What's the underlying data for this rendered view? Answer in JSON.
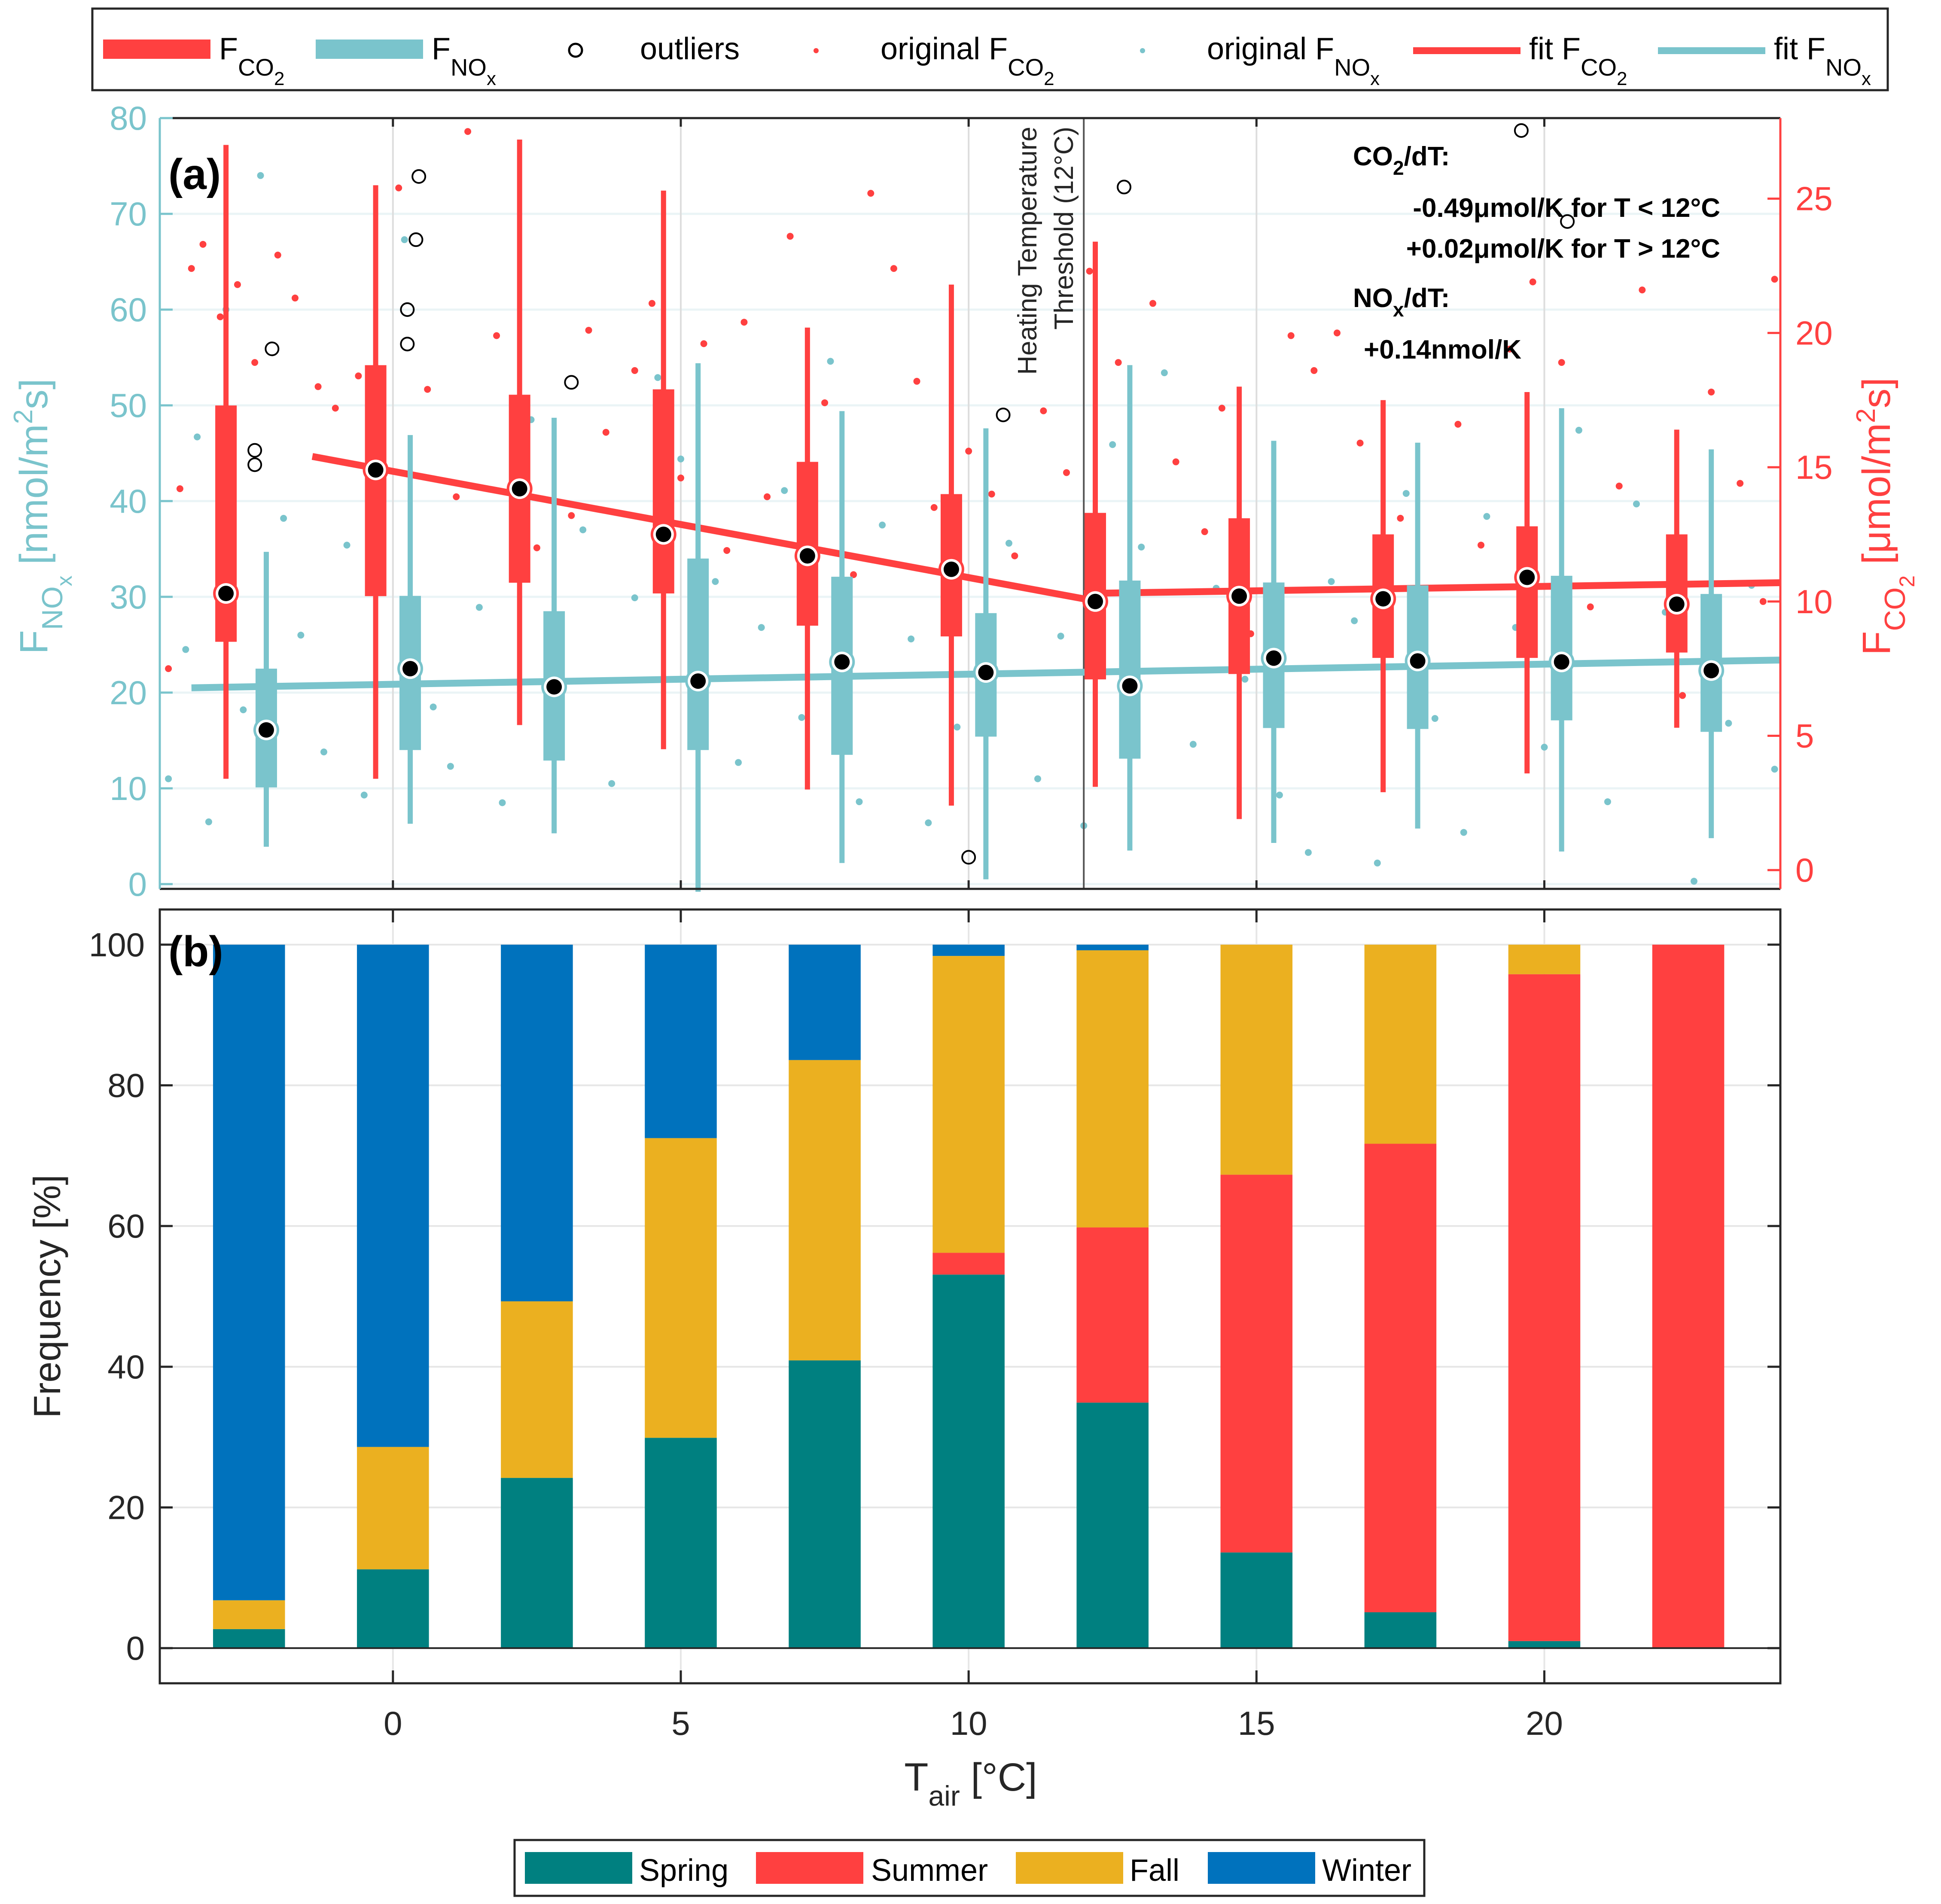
{
  "colors": {
    "co2": "#FF4040",
    "nox": "#7AC4CC",
    "spring": "#008080",
    "summer": "#FF4040",
    "fall": "#EBB020",
    "winter": "#0072BD",
    "axis": "#262626",
    "grid": "#E6E6E6"
  },
  "top_legend": {
    "items": [
      {
        "key": "box_co2",
        "label": "F",
        "sub": "CO",
        "subsub": "2"
      },
      {
        "key": "box_nox",
        "label": "F",
        "sub": "NO",
        "subsub": "x"
      },
      {
        "key": "outliers",
        "label": "outliers"
      },
      {
        "key": "orig_co2",
        "label": "original F",
        "sub": "CO",
        "subsub": "2"
      },
      {
        "key": "orig_nox",
        "label": "original F",
        "sub": "NO",
        "subsub": "x"
      },
      {
        "key": "fit_co2",
        "label": "fit F",
        "sub": "CO",
        "subsub": "2"
      },
      {
        "key": "fit_nox",
        "label": "fit F",
        "sub": "NO",
        "subsub": "x"
      }
    ]
  },
  "bottom_legend": {
    "items": [
      "Spring",
      "Summer",
      "Fall",
      "Winter"
    ]
  },
  "chart_data": [
    {
      "panel": "(a)",
      "type": "box",
      "xlabel": "T",
      "xlabel_sub": "air",
      "xlabel_unit": " [°C]",
      "xlim": [
        -4.05,
        24.1
      ],
      "xticks": [
        0,
        5,
        10,
        15,
        20
      ],
      "y_left": {
        "label": "F",
        "sub": "NO",
        "subsub": "x",
        "unit": " [nmol/m",
        "unit_sup": "2",
        "unit_end": "s]",
        "lim": [
          -0.5,
          80
        ],
        "ticks": [
          0,
          10,
          20,
          30,
          40,
          50,
          60,
          70,
          80
        ]
      },
      "y_right": {
        "label": "F",
        "sub": "CO",
        "subsub": "2",
        "unit": " [μmol/m",
        "unit_sup": "2",
        "unit_end": "s]",
        "lim": [
          -0.7,
          28.0
        ],
        "ticks": [
          0,
          5,
          10,
          15,
          20,
          25
        ]
      },
      "threshold": {
        "x": 12,
        "label_line1": "Heating Temperature",
        "label_line2": "Threshold (12°C)"
      },
      "annotation": {
        "co2_title": "CO",
        "co2_sub": "2",
        "co2_title_end": "/dT:",
        "co2_line1": "-0.49μmol/K for T < 12°C",
        "co2_line2": "+0.02μmol/K for T > 12°C",
        "nox_title": "NO",
        "nox_sub": "x",
        "nox_title_end": "/dT:",
        "nox_line1": "+0.14nmol/K"
      },
      "co2_boxes": [
        {
          "x": -2.9,
          "whisker_low": 3.4,
          "q1": 8.5,
          "median": 10.3,
          "q3": 17.3,
          "whisker_high": 27.0
        },
        {
          "x": -0.3,
          "whisker_low": 3.4,
          "q1": 10.2,
          "median": 14.9,
          "q3": 18.8,
          "whisker_high": 25.5
        },
        {
          "x": 2.2,
          "whisker_low": 5.4,
          "q1": 10.7,
          "median": 14.2,
          "q3": 17.7,
          "whisker_high": 27.2
        },
        {
          "x": 4.7,
          "whisker_low": 4.5,
          "q1": 10.3,
          "median": 12.5,
          "q3": 17.9,
          "whisker_high": 25.3
        },
        {
          "x": 7.2,
          "whisker_low": 3.0,
          "q1": 9.1,
          "median": 11.7,
          "q3": 15.2,
          "whisker_high": 20.2
        },
        {
          "x": 9.7,
          "whisker_low": 2.4,
          "q1": 8.7,
          "median": 11.2,
          "q3": 14.0,
          "whisker_high": 21.8
        },
        {
          "x": 12.2,
          "whisker_low": 3.1,
          "q1": 7.1,
          "median": 10.0,
          "q3": 13.3,
          "whisker_high": 23.4
        },
        {
          "x": 14.7,
          "whisker_low": 1.9,
          "q1": 7.3,
          "median": 10.2,
          "q3": 13.1,
          "whisker_high": 18.0
        },
        {
          "x": 17.2,
          "whisker_low": 2.9,
          "q1": 7.9,
          "median": 10.1,
          "q3": 12.5,
          "whisker_high": 17.5
        },
        {
          "x": 19.7,
          "whisker_low": 3.6,
          "q1": 7.9,
          "median": 10.9,
          "q3": 12.8,
          "whisker_high": 17.8
        },
        {
          "x": 22.3,
          "whisker_low": 5.3,
          "q1": 8.1,
          "median": 9.9,
          "q3": 12.5,
          "whisker_high": 16.4
        }
      ],
      "nox_boxes": [
        {
          "x": -2.2,
          "whisker_low": 3.9,
          "q1": 10.1,
          "median": 16.1,
          "q3": 22.5,
          "whisker_high": 34.7
        },
        {
          "x": 0.3,
          "whisker_low": 6.3,
          "q1": 14.0,
          "median": 22.5,
          "q3": 30.1,
          "whisker_high": 46.9
        },
        {
          "x": 2.8,
          "whisker_low": 5.3,
          "q1": 12.9,
          "median": 20.6,
          "q3": 28.5,
          "whisker_high": 48.7
        },
        {
          "x": 5.3,
          "whisker_low": -0.8,
          "q1": 14.0,
          "median": 21.2,
          "q3": 34.0,
          "whisker_high": 54.4
        },
        {
          "x": 7.8,
          "whisker_low": 2.2,
          "q1": 13.5,
          "median": 23.2,
          "q3": 32.1,
          "whisker_high": 49.4
        },
        {
          "x": 10.3,
          "whisker_low": 0.5,
          "q1": 15.4,
          "median": 22.1,
          "q3": 28.3,
          "whisker_high": 47.6
        },
        {
          "x": 12.8,
          "whisker_low": 3.5,
          "q1": 13.1,
          "median": 20.7,
          "q3": 31.7,
          "whisker_high": 54.2
        },
        {
          "x": 15.3,
          "whisker_low": 4.3,
          "q1": 16.3,
          "median": 23.6,
          "q3": 31.5,
          "whisker_high": 46.3
        },
        {
          "x": 17.8,
          "whisker_low": 5.8,
          "q1": 16.2,
          "median": 23.3,
          "q3": 31.2,
          "whisker_high": 46.1
        },
        {
          "x": 20.3,
          "whisker_low": 3.4,
          "q1": 17.1,
          "median": 23.2,
          "q3": 32.2,
          "whisker_high": 49.7
        },
        {
          "x": 22.9,
          "whisker_low": 4.8,
          "q1": 15.9,
          "median": 22.3,
          "q3": 30.3,
          "whisker_high": 45.4
        }
      ],
      "fit_co2": [
        {
          "x": [
            -1.4,
            12.0
          ],
          "y": [
            15.4,
            10.1
          ]
        },
        {
          "x": [
            12.0,
            24.1
          ],
          "y": [
            10.3,
            10.7
          ]
        }
      ],
      "fit_nox": {
        "x": [
          -3.5,
          24.1
        ],
        "y": [
          20.5,
          23.4
        ]
      },
      "outliers_left_units": [
        [
          -2.4,
          45.3
        ],
        [
          -2.4,
          43.8
        ],
        [
          -2.1,
          55.9
        ],
        [
          0.45,
          73.9
        ],
        [
          0.4,
          67.3
        ],
        [
          0.25,
          60.0
        ],
        [
          0.25,
          56.4
        ],
        [
          3.1,
          52.4
        ],
        [
          10.0,
          2.8
        ],
        [
          10.6,
          49.0
        ],
        [
          12.7,
          72.8
        ],
        [
          19.6,
          78.7
        ],
        [
          20.4,
          69.2
        ]
      ],
      "original_co2_right_units": [
        [
          -3.9,
          7.5
        ],
        [
          -3.7,
          14.2
        ],
        [
          -3.5,
          22.4
        ],
        [
          -3.3,
          23.3
        ],
        [
          -3.0,
          20.6
        ],
        [
          -2.7,
          21.8
        ],
        [
          -2.4,
          18.9
        ],
        [
          -2.0,
          22.9
        ],
        [
          -1.7,
          21.3
        ],
        [
          -1.3,
          18.0
        ],
        [
          -1.0,
          17.2
        ],
        [
          -0.6,
          18.4
        ],
        [
          -0.4,
          16.5
        ],
        [
          0.1,
          25.4
        ],
        [
          0.6,
          17.9
        ],
        [
          1.3,
          27.5
        ],
        [
          1.1,
          13.9
        ],
        [
          1.8,
          19.9
        ],
        [
          2.5,
          12.0
        ],
        [
          3.1,
          13.2
        ],
        [
          3.4,
          20.1
        ],
        [
          3.7,
          16.3
        ],
        [
          4.2,
          18.6
        ],
        [
          4.5,
          21.1
        ],
        [
          5.0,
          14.6
        ],
        [
          5.4,
          19.6
        ],
        [
          5.8,
          11.9
        ],
        [
          6.1,
          20.4
        ],
        [
          6.5,
          13.9
        ],
        [
          6.9,
          23.6
        ],
        [
          7.5,
          17.4
        ],
        [
          8.0,
          11.0
        ],
        [
          8.3,
          25.2
        ],
        [
          8.7,
          22.4
        ],
        [
          9.1,
          18.2
        ],
        [
          9.4,
          13.5
        ],
        [
          10.0,
          15.6
        ],
        [
          10.4,
          14.0
        ],
        [
          10.8,
          11.7
        ],
        [
          11.3,
          17.1
        ],
        [
          11.7,
          14.8
        ],
        [
          12.1,
          22.3
        ],
        [
          12.6,
          18.9
        ],
        [
          13.2,
          21.1
        ],
        [
          13.6,
          15.2
        ],
        [
          14.1,
          12.6
        ],
        [
          14.4,
          17.2
        ],
        [
          14.9,
          8.8
        ],
        [
          15.6,
          19.9
        ],
        [
          16.0,
          18.6
        ],
        [
          16.4,
          20.0
        ],
        [
          16.8,
          15.9
        ],
        [
          17.5,
          13.1
        ],
        [
          17.9,
          7.3
        ],
        [
          18.5,
          16.6
        ],
        [
          18.9,
          12.1
        ],
        [
          19.4,
          19.4
        ],
        [
          19.8,
          21.9
        ],
        [
          20.3,
          18.9
        ],
        [
          20.8,
          9.8
        ],
        [
          21.3,
          14.3
        ],
        [
          21.7,
          21.6
        ],
        [
          22.4,
          6.5
        ],
        [
          22.9,
          17.8
        ],
        [
          23.4,
          14.4
        ],
        [
          23.8,
          10.0
        ],
        [
          24.0,
          22.0
        ]
      ],
      "original_nox_left_units": [
        [
          -3.9,
          11.0
        ],
        [
          -3.6,
          24.5
        ],
        [
          -3.4,
          46.7
        ],
        [
          -3.2,
          6.5
        ],
        [
          -2.9,
          60.0
        ],
        [
          -2.6,
          18.2
        ],
        [
          -2.3,
          74.0
        ],
        [
          -1.9,
          38.2
        ],
        [
          -1.6,
          26.0
        ],
        [
          -1.2,
          13.8
        ],
        [
          -0.8,
          35.4
        ],
        [
          -0.5,
          9.3
        ],
        [
          0.2,
          67.3
        ],
        [
          0.7,
          18.5
        ],
        [
          1.0,
          12.3
        ],
        [
          1.5,
          28.9
        ],
        [
          1.9,
          8.5
        ],
        [
          2.4,
          48.5
        ],
        [
          2.9,
          15.3
        ],
        [
          3.3,
          37.0
        ],
        [
          3.8,
          10.5
        ],
        [
          4.2,
          29.9
        ],
        [
          4.6,
          52.9
        ],
        [
          5.0,
          44.4
        ],
        [
          5.6,
          31.6
        ],
        [
          6.0,
          12.7
        ],
        [
          6.4,
          26.8
        ],
        [
          6.8,
          41.1
        ],
        [
          7.1,
          17.4
        ],
        [
          7.6,
          54.6
        ],
        [
          8.1,
          8.6
        ],
        [
          8.5,
          37.5
        ],
        [
          9.0,
          25.6
        ],
        [
          9.3,
          6.4
        ],
        [
          9.8,
          16.4
        ],
        [
          10.7,
          35.6
        ],
        [
          11.2,
          11.0
        ],
        [
          11.6,
          25.9
        ],
        [
          12.0,
          6.1
        ],
        [
          12.5,
          45.9
        ],
        [
          13.0,
          35.2
        ],
        [
          13.4,
          53.4
        ],
        [
          13.9,
          14.6
        ],
        [
          14.3,
          30.9
        ],
        [
          14.8,
          21.4
        ],
        [
          15.4,
          9.3
        ],
        [
          15.9,
          3.3
        ],
        [
          16.3,
          31.6
        ],
        [
          16.7,
          27.5
        ],
        [
          17.1,
          2.2
        ],
        [
          17.6,
          40.8
        ],
        [
          18.1,
          17.3
        ],
        [
          18.6,
          5.4
        ],
        [
          19.0,
          38.4
        ],
        [
          19.5,
          26.8
        ],
        [
          20.0,
          14.3
        ],
        [
          20.6,
          47.4
        ],
        [
          21.1,
          8.6
        ],
        [
          21.6,
          39.7
        ],
        [
          22.1,
          28.4
        ],
        [
          22.6,
          0.3
        ],
        [
          23.2,
          16.8
        ],
        [
          23.6,
          31.2
        ],
        [
          24.0,
          12.0
        ]
      ]
    },
    {
      "panel": "(b)",
      "type": "bar",
      "stacked": true,
      "ylabel": "Frequency [%]",
      "ylim": [
        -5,
        105
      ],
      "yticks": [
        0,
        20,
        40,
        60,
        80,
        100
      ],
      "xlim": [
        -4.05,
        24.1
      ],
      "xticks": [
        0,
        5,
        10,
        15,
        20
      ],
      "x": [
        -2.5,
        0.0,
        2.5,
        5.0,
        7.5,
        10.0,
        12.5,
        15.0,
        17.5,
        20.0,
        22.5
      ],
      "legend_position": "bottom-center",
      "series": [
        {
          "name": "Spring",
          "values": [
            2.7,
            11.2,
            24.2,
            29.9,
            40.9,
            53.1,
            34.9,
            13.6,
            5.1,
            1.0,
            0.0
          ]
        },
        {
          "name": "Summer",
          "values": [
            0.0,
            0.0,
            0.0,
            0.0,
            0.0,
            3.1,
            24.9,
            53.7,
            66.6,
            94.8,
            100.0
          ]
        },
        {
          "name": "Fall",
          "values": [
            4.1,
            17.4,
            25.1,
            42.6,
            42.7,
            42.2,
            39.4,
            32.7,
            28.3,
            4.2,
            0.0
          ]
        },
        {
          "name": "Winter",
          "values": [
            93.2,
            71.4,
            50.7,
            27.5,
            16.4,
            1.6,
            0.8,
            0.0,
            0.0,
            0.0,
            0.0
          ]
        }
      ]
    }
  ]
}
